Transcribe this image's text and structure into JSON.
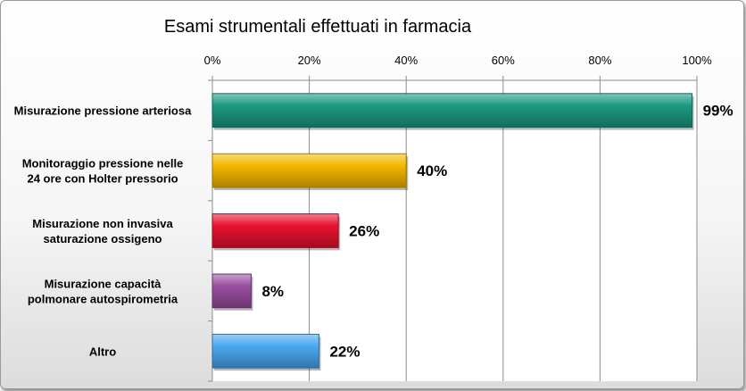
{
  "chart_data": {
    "type": "bar",
    "orientation": "horizontal",
    "title": "Esami strumentali effettuati in farmacia",
    "categories": [
      [
        "Misurazione pressione arteriosa"
      ],
      [
        "Monitoraggio pressione nelle",
        "24 ore con Holter pressorio"
      ],
      [
        "Misurazione non invasiva",
        "saturazione ossigeno"
      ],
      [
        "Misurazione capacità",
        "polmonare autospirometria"
      ],
      [
        "Altro"
      ]
    ],
    "values": [
      99,
      40,
      26,
      8,
      22
    ],
    "data_labels": [
      "99%",
      "40%",
      "26%",
      "8%",
      "22%"
    ],
    "colors": [
      "#1b9a82",
      "#f5b800",
      "#e8122f",
      "#9a4ea0",
      "#4aa8f0"
    ],
    "xlim": [
      0,
      100
    ],
    "x_ticks": [
      0,
      20,
      40,
      60,
      80,
      100
    ],
    "x_tick_labels": [
      "0%",
      "20%",
      "40%",
      "60%",
      "80%",
      "100%"
    ],
    "x_axis_position": "top",
    "grid": true,
    "legend": "none"
  }
}
